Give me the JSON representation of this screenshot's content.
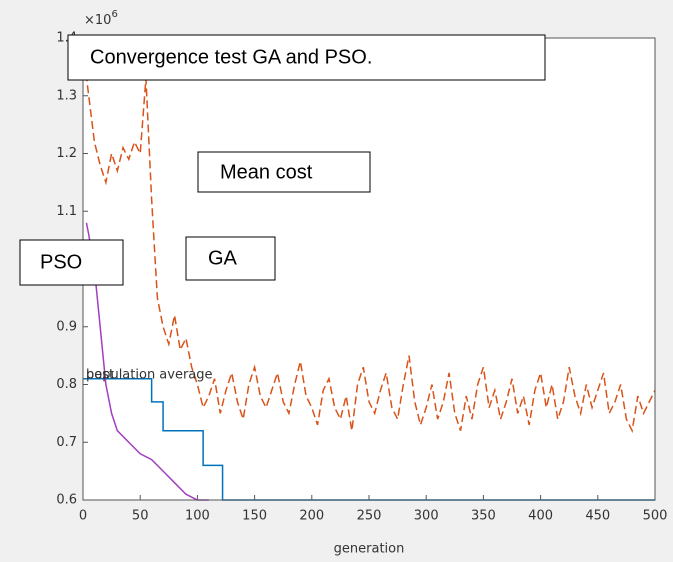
{
  "chart_data": {
    "type": "line",
    "title": "Convergence test GA and PSO.",
    "annotations": [
      "Mean cost",
      "GA",
      "PSO"
    ],
    "x_label": "generation",
    "y_exponent": {
      "base": "×10",
      "power": "6"
    },
    "xlim": [
      0,
      500
    ],
    "xticks": [
      0,
      50,
      100,
      150,
      200,
      250,
      300,
      350,
      400,
      450,
      500
    ],
    "ylim": [
      0.6,
      1.4
    ],
    "yticks": [
      0.6,
      0.7,
      0.8,
      0.9,
      1,
      1.1,
      1.2,
      1.3,
      1.4
    ],
    "series": [
      {
        "name": "population average",
        "color": "#d95319",
        "dashed": true,
        "x": [
          0,
          5,
          10,
          15,
          20,
          25,
          30,
          35,
          40,
          45,
          50,
          55,
          60,
          65,
          70,
          75,
          80,
          85,
          90,
          95,
          100,
          105,
          110,
          115,
          120,
          125,
          130,
          135,
          140,
          145,
          150,
          155,
          160,
          165,
          170,
          175,
          180,
          185,
          190,
          195,
          200,
          205,
          210,
          215,
          220,
          225,
          230,
          235,
          240,
          245,
          250,
          255,
          260,
          265,
          270,
          275,
          280,
          285,
          290,
          295,
          300,
          305,
          310,
          315,
          320,
          325,
          330,
          335,
          340,
          345,
          350,
          355,
          360,
          365,
          370,
          375,
          380,
          385,
          390,
          395,
          400,
          405,
          410,
          415,
          420,
          425,
          430,
          435,
          440,
          445,
          450,
          455,
          460,
          465,
          470,
          475,
          480,
          485,
          490,
          495,
          500
        ],
        "values": [
          1.38,
          1.3,
          1.22,
          1.18,
          1.15,
          1.2,
          1.17,
          1.21,
          1.19,
          1.22,
          1.2,
          1.33,
          1.12,
          0.95,
          0.9,
          0.87,
          0.92,
          0.86,
          0.88,
          0.83,
          0.8,
          0.76,
          0.78,
          0.81,
          0.75,
          0.79,
          0.82,
          0.77,
          0.74,
          0.8,
          0.83,
          0.78,
          0.76,
          0.79,
          0.82,
          0.77,
          0.75,
          0.8,
          0.84,
          0.78,
          0.76,
          0.73,
          0.79,
          0.81,
          0.76,
          0.74,
          0.78,
          0.72,
          0.8,
          0.83,
          0.77,
          0.75,
          0.79,
          0.82,
          0.76,
          0.74,
          0.8,
          0.85,
          0.77,
          0.73,
          0.76,
          0.8,
          0.74,
          0.77,
          0.82,
          0.75,
          0.72,
          0.78,
          0.74,
          0.8,
          0.83,
          0.76,
          0.79,
          0.74,
          0.77,
          0.81,
          0.75,
          0.78,
          0.73,
          0.79,
          0.82,
          0.76,
          0.8,
          0.74,
          0.77,
          0.83,
          0.78,
          0.75,
          0.8,
          0.76,
          0.79,
          0.82,
          0.75,
          0.77,
          0.8,
          0.74,
          0.72,
          0.78,
          0.75,
          0.77,
          0.79
        ]
      },
      {
        "name": "best",
        "color": "#0072bd",
        "dashed": false,
        "x": [
          0,
          60,
          60,
          70,
          70,
          105,
          105,
          122,
          122,
          500
        ],
        "values": [
          0.81,
          0.81,
          0.77,
          0.77,
          0.72,
          0.72,
          0.66,
          0.66,
          0.6,
          0.6
        ]
      },
      {
        "color": "#a23fc0",
        "dashed": false,
        "x": [
          3,
          5,
          10,
          15,
          20,
          25,
          30,
          40,
          50,
          60,
          70,
          80,
          90,
          100,
          110
        ],
        "values": [
          1.08,
          1.06,
          1.0,
          0.9,
          0.8,
          0.75,
          0.72,
          0.7,
          0.68,
          0.67,
          0.65,
          0.63,
          0.61,
          0.6,
          0.6
        ]
      }
    ]
  }
}
